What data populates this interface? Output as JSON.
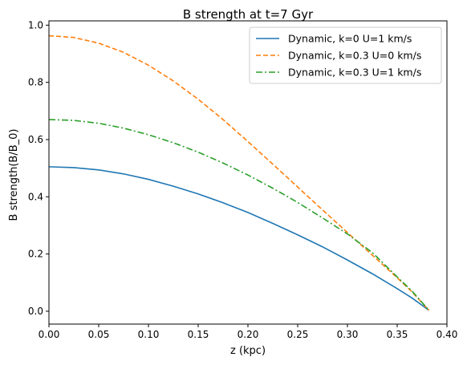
{
  "chart_data": {
    "type": "line",
    "title": "B strength at t=7 Gyr",
    "xlabel": "z (kpc)",
    "ylabel": "B strength(B/B_0)",
    "xlim": [
      0.0,
      0.4
    ],
    "ylim": [
      -0.045,
      1.015
    ],
    "grid": false,
    "legend_position": "top-right",
    "xticks": [
      "0.00",
      "0.05",
      "0.10",
      "0.15",
      "0.20",
      "0.25",
      "0.30",
      "0.35",
      "0.40"
    ],
    "yticks": [
      "0.0",
      "0.2",
      "0.4",
      "0.6",
      "0.8",
      "1.0"
    ],
    "series": [
      {
        "name": "Dynamic, k=0 U=1 km/s",
        "style": "solid",
        "color": "#1f77b4",
        "x": [
          0.0,
          0.025,
          0.05,
          0.075,
          0.1,
          0.125,
          0.15,
          0.175,
          0.2,
          0.225,
          0.25,
          0.275,
          0.3,
          0.325,
          0.35,
          0.365,
          0.382
        ],
        "y": [
          0.505,
          0.502,
          0.494,
          0.48,
          0.461,
          0.437,
          0.41,
          0.379,
          0.345,
          0.307,
          0.267,
          0.225,
          0.179,
          0.131,
          0.079,
          0.046,
          0.003
        ]
      },
      {
        "name": "Dynamic, k=0.3 U=0 km/s",
        "style": "dashed",
        "color": "#ff7f0e",
        "x": [
          0.0,
          0.025,
          0.05,
          0.075,
          0.1,
          0.125,
          0.15,
          0.175,
          0.2,
          0.225,
          0.25,
          0.275,
          0.3,
          0.325,
          0.35,
          0.365,
          0.382
        ],
        "y": [
          0.963,
          0.957,
          0.937,
          0.905,
          0.86,
          0.805,
          0.741,
          0.67,
          0.593,
          0.514,
          0.434,
          0.354,
          0.275,
          0.196,
          0.117,
          0.067,
          0.003
        ]
      },
      {
        "name": "Dynamic, k=0.3 U=1 km/s",
        "style": "dashdot",
        "color": "#2ca02c",
        "x": [
          0.0,
          0.025,
          0.05,
          0.075,
          0.1,
          0.125,
          0.15,
          0.175,
          0.2,
          0.225,
          0.25,
          0.275,
          0.3,
          0.325,
          0.35,
          0.365,
          0.382
        ],
        "y": [
          0.67,
          0.667,
          0.657,
          0.64,
          0.617,
          0.589,
          0.556,
          0.518,
          0.476,
          0.43,
          0.38,
          0.326,
          0.27,
          0.205,
          0.12,
          0.07,
          0.003
        ]
      }
    ]
  }
}
